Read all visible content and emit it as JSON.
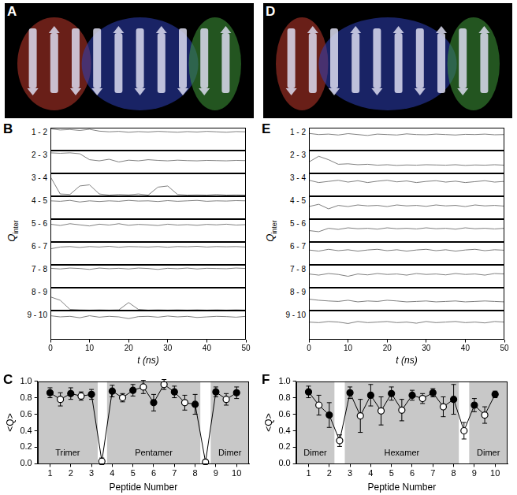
{
  "images": [
    {
      "panel": "A"
    },
    {
      "panel": "D"
    }
  ],
  "chart_data": [
    {
      "panel": "B",
      "type": "line",
      "color": "#7f7f7f",
      "x": [
        0,
        2.5,
        5,
        7.5,
        10,
        12.5,
        15,
        17.5,
        20,
        22.5,
        25,
        27.5,
        30,
        32.5,
        35,
        37.5,
        40,
        42.5,
        45,
        47.5,
        50
      ],
      "series": [
        {
          "name": "1 - 2",
          "values": [
            0.95,
            0.9,
            0.92,
            0.88,
            0.93,
            0.85,
            0.82,
            0.84,
            0.8,
            0.83,
            0.81,
            0.84,
            0.82,
            0.8,
            0.83,
            0.81,
            0.84,
            0.82,
            0.8,
            0.83,
            0.82
          ]
        },
        {
          "name": "2 - 3",
          "values": [
            0.9,
            0.88,
            0.9,
            0.86,
            0.6,
            0.55,
            0.62,
            0.5,
            0.58,
            0.55,
            0.6,
            0.57,
            0.55,
            0.58,
            0.56,
            0.55,
            0.57,
            0.56,
            0.55,
            0.57,
            0.56
          ]
        },
        {
          "name": "3 - 4",
          "values": [
            0.85,
            0.1,
            0.08,
            0.45,
            0.5,
            0.1,
            0.05,
            0.08,
            0.06,
            0.1,
            0.05,
            0.4,
            0.45,
            0.08,
            0.05,
            0.06,
            0.05,
            0.08,
            0.05,
            0.06,
            0.05
          ]
        },
        {
          "name": "4 - 5",
          "values": [
            0.8,
            0.78,
            0.82,
            0.75,
            0.8,
            0.77,
            0.8,
            0.78,
            0.82,
            0.79,
            0.8,
            0.77,
            0.81,
            0.78,
            0.8,
            0.82,
            0.78,
            0.8,
            0.79,
            0.81,
            0.8
          ]
        },
        {
          "name": "5 - 6",
          "values": [
            0.78,
            0.72,
            0.8,
            0.75,
            0.7,
            0.78,
            0.74,
            0.8,
            0.73,
            0.77,
            0.75,
            0.72,
            0.78,
            0.74,
            0.76,
            0.73,
            0.77,
            0.75,
            0.78,
            0.74,
            0.76
          ]
        },
        {
          "name": "6 - 7",
          "values": [
            0.7,
            0.78,
            0.8,
            0.76,
            0.8,
            0.78,
            0.81,
            0.77,
            0.8,
            0.79,
            0.78,
            0.8,
            0.77,
            0.8,
            0.79,
            0.81,
            0.78,
            0.8,
            0.79,
            0.8,
            0.78
          ]
        },
        {
          "name": "7 - 8",
          "values": [
            0.85,
            0.82,
            0.86,
            0.84,
            0.8,
            0.86,
            0.83,
            0.85,
            0.82,
            0.86,
            0.84,
            0.8,
            0.85,
            0.83,
            0.86,
            0.82,
            0.85,
            0.84,
            0.83,
            0.86,
            0.84
          ]
        },
        {
          "name": "8 - 9",
          "values": [
            0.6,
            0.45,
            0.05,
            0.03,
            0.02,
            0.03,
            0.02,
            0.03,
            0.35,
            0.05,
            0.02,
            0.03,
            0.02,
            0.03,
            0.02,
            0.03,
            0.02,
            0.03,
            0.02,
            0.03,
            0.02
          ]
        },
        {
          "name": "9 - 10",
          "values": [
            0.82,
            0.78,
            0.8,
            0.75,
            0.82,
            0.77,
            0.8,
            0.78,
            0.72,
            0.79,
            0.8,
            0.77,
            0.81,
            0.78,
            0.8,
            0.76,
            0.78,
            0.8,
            0.79,
            0.77,
            0.8
          ]
        }
      ],
      "xlim": [
        0,
        50
      ],
      "xticks": [
        0,
        10,
        20,
        30,
        40,
        50
      ],
      "ylim": [
        0,
        1
      ],
      "xlabel": "t (ns)",
      "ylabel": {
        "text": "Q",
        "sub": "inter"
      },
      "tick_labels": "x"
    },
    {
      "panel": "C",
      "type": "scatter",
      "color": "#000000",
      "marker": "circle",
      "line_style": "solid",
      "x": [
        1,
        1.5,
        2,
        2.5,
        3,
        3.5,
        4,
        4.5,
        5,
        5.5,
        6,
        6.5,
        7,
        7.5,
        8,
        8.5,
        9,
        9.5,
        10
      ],
      "values": [
        0.86,
        0.78,
        0.85,
        0.82,
        0.84,
        0.03,
        0.88,
        0.8,
        0.89,
        0.93,
        0.74,
        0.96,
        0.87,
        0.74,
        0.72,
        0.02,
        0.87,
        0.78,
        0.86
      ],
      "errors": [
        0.06,
        0.08,
        0.07,
        0.05,
        0.06,
        0.04,
        0.07,
        0.05,
        0.07,
        0.08,
        0.1,
        0.06,
        0.07,
        0.09,
        0.12,
        0.03,
        0.06,
        0.07,
        0.07
      ],
      "colors": [
        "#000000",
        "#ffffff",
        "#000000",
        "#ffffff",
        "#000000",
        "#ffffff",
        "#000000",
        "#ffffff",
        "#000000",
        "#ffffff",
        "#000000",
        "#ffffff",
        "#000000",
        "#ffffff",
        "#000000",
        "#ffffff",
        "#000000",
        "#ffffff",
        "#000000"
      ],
      "xlim": [
        0.4,
        10.6
      ],
      "xticks": [
        1,
        2,
        3,
        4,
        5,
        6,
        7,
        8,
        9,
        10
      ],
      "ylim": [
        0,
        1
      ],
      "yticks": [
        {
          "value": 0,
          "label": "0.0"
        },
        {
          "value": 0.2,
          "label": "0.2"
        },
        {
          "value": 0.4,
          "label": "0.4"
        },
        {
          "value": 0.6,
          "label": "0.6"
        },
        {
          "value": 0.8,
          "label": "0.8"
        },
        {
          "value": 1,
          "label": "1.0"
        }
      ],
      "xlabel": "Peptide Number",
      "ylabel": "<Q>",
      "regions": [
        {
          "from": 0.4,
          "to": 3.3,
          "label": "Trimer"
        },
        {
          "from": 3.75,
          "to": 8.25,
          "label": "Pentamer"
        },
        {
          "from": 8.75,
          "to": 10.6,
          "label": "Dimer"
        }
      ]
    },
    {
      "panel": "E",
      "type": "line",
      "color": "#7f7f7f",
      "x": [
        0,
        2.5,
        5,
        7.5,
        10,
        12.5,
        15,
        17.5,
        20,
        22.5,
        25,
        27.5,
        30,
        32.5,
        35,
        37.5,
        40,
        42.5,
        45,
        47.5,
        50
      ],
      "series": [
        {
          "name": "1 - 2",
          "values": [
            0.75,
            0.7,
            0.72,
            0.68,
            0.74,
            0.7,
            0.66,
            0.72,
            0.7,
            0.68,
            0.73,
            0.7,
            0.69,
            0.72,
            0.7,
            0.68,
            0.71,
            0.7,
            0.72,
            0.69,
            0.7
          ]
        },
        {
          "name": "2 - 3",
          "values": [
            0.5,
            0.75,
            0.6,
            0.4,
            0.42,
            0.38,
            0.4,
            0.36,
            0.38,
            0.35,
            0.37,
            0.36,
            0.38,
            0.37,
            0.36,
            0.38,
            0.35,
            0.37,
            0.36,
            0.38,
            0.36
          ]
        },
        {
          "name": "3 - 4",
          "values": [
            0.7,
            0.6,
            0.65,
            0.7,
            0.62,
            0.68,
            0.6,
            0.66,
            0.7,
            0.63,
            0.67,
            0.6,
            0.65,
            0.68,
            0.62,
            0.66,
            0.6,
            0.64,
            0.68,
            0.62,
            0.65
          ]
        },
        {
          "name": "4 - 5",
          "values": [
            0.55,
            0.65,
            0.45,
            0.6,
            0.55,
            0.62,
            0.58,
            0.6,
            0.55,
            0.62,
            0.58,
            0.6,
            0.56,
            0.62,
            0.58,
            0.6,
            0.55,
            0.62,
            0.58,
            0.6,
            0.57
          ]
        },
        {
          "name": "5 - 6",
          "values": [
            0.5,
            0.45,
            0.6,
            0.55,
            0.62,
            0.58,
            0.6,
            0.56,
            0.62,
            0.58,
            0.6,
            0.57,
            0.62,
            0.58,
            0.6,
            0.56,
            0.62,
            0.58,
            0.6,
            0.57,
            0.6
          ]
        },
        {
          "name": "6 - 7",
          "values": [
            0.65,
            0.6,
            0.68,
            0.62,
            0.66,
            0.6,
            0.65,
            0.68,
            0.62,
            0.66,
            0.6,
            0.65,
            0.68,
            0.62,
            0.66,
            0.6,
            0.65,
            0.68,
            0.62,
            0.66,
            0.64
          ]
        },
        {
          "name": "7 - 8",
          "values": [
            0.6,
            0.55,
            0.62,
            0.58,
            0.5,
            0.6,
            0.56,
            0.62,
            0.58,
            0.6,
            0.55,
            0.62,
            0.58,
            0.6,
            0.56,
            0.62,
            0.58,
            0.6,
            0.55,
            0.62,
            0.6
          ]
        },
        {
          "name": "8 - 9",
          "values": [
            0.5,
            0.45,
            0.42,
            0.4,
            0.45,
            0.38,
            0.42,
            0.4,
            0.45,
            0.42,
            0.38,
            0.4,
            0.42,
            0.38,
            0.4,
            0.42,
            0.38,
            0.4,
            0.42,
            0.4,
            0.38
          ]
        },
        {
          "name": "9 - 10",
          "values": [
            0.6,
            0.58,
            0.62,
            0.6,
            0.55,
            0.62,
            0.58,
            0.6,
            0.62,
            0.58,
            0.6,
            0.56,
            0.62,
            0.58,
            0.6,
            0.62,
            0.58,
            0.6,
            0.57,
            0.62,
            0.6
          ]
        }
      ],
      "xlim": [
        0,
        50
      ],
      "xticks": [
        0,
        10,
        20,
        30,
        40,
        50
      ],
      "ylim": [
        0,
        1
      ],
      "xlabel": "t (ns)",
      "ylabel": {
        "text": "Q",
        "sub": "inter"
      },
      "tick_labels": "x"
    },
    {
      "panel": "F",
      "type": "scatter",
      "color": "#000000",
      "marker": "circle",
      "line_style": "solid",
      "x": [
        1,
        1.5,
        2,
        2.5,
        3,
        3.5,
        4,
        4.5,
        5,
        5.5,
        6,
        6.5,
        7,
        7.5,
        8,
        8.5,
        9,
        9.5,
        10
      ],
      "values": [
        0.87,
        0.71,
        0.59,
        0.28,
        0.86,
        0.58,
        0.83,
        0.64,
        0.85,
        0.65,
        0.83,
        0.79,
        0.86,
        0.69,
        0.78,
        0.4,
        0.71,
        0.59,
        0.84
      ],
      "errors": [
        0.07,
        0.12,
        0.15,
        0.07,
        0.07,
        0.2,
        0.13,
        0.17,
        0.08,
        0.13,
        0.06,
        0.06,
        0.05,
        0.12,
        0.18,
        0.1,
        0.08,
        0.1,
        0.04
      ],
      "colors": [
        "#000000",
        "#ffffff",
        "#000000",
        "#ffffff",
        "#000000",
        "#ffffff",
        "#000000",
        "#ffffff",
        "#000000",
        "#ffffff",
        "#000000",
        "#ffffff",
        "#000000",
        "#ffffff",
        "#000000",
        "#ffffff",
        "#000000",
        "#ffffff",
        "#000000"
      ],
      "xlim": [
        0.4,
        10.6
      ],
      "xticks": [
        1,
        2,
        3,
        4,
        5,
        6,
        7,
        8,
        9,
        10
      ],
      "ylim": [
        0,
        1
      ],
      "yticks": [
        {
          "value": 0,
          "label": "0.0"
        },
        {
          "value": 0.2,
          "label": "0.2"
        },
        {
          "value": 0.4,
          "label": "0.4"
        },
        {
          "value": 0.6,
          "label": "0.6"
        },
        {
          "value": 0.8,
          "label": "0.8"
        },
        {
          "value": 1,
          "label": "1.0"
        }
      ],
      "xlabel": "Peptide Number",
      "ylabel": "<Q>",
      "regions": [
        {
          "from": 0.4,
          "to": 2.25,
          "label": "Dimer"
        },
        {
          "from": 2.75,
          "to": 8.25,
          "label": "Hexamer"
        },
        {
          "from": 8.75,
          "to": 10.6,
          "label": "Dimer"
        }
      ]
    }
  ]
}
